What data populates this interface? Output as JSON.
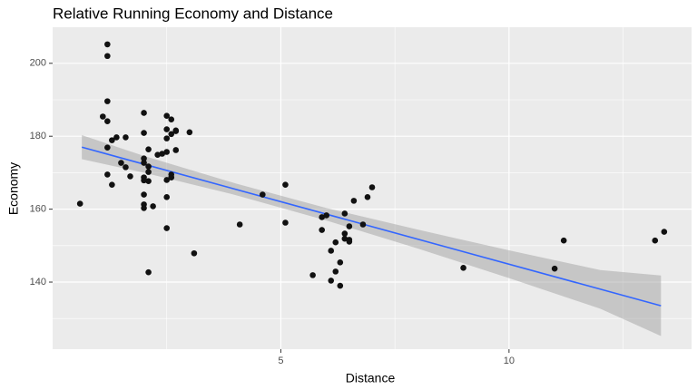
{
  "chart_data": {
    "type": "scatter",
    "title": "Relative Running Economy and Distance",
    "x_label": "Distance",
    "y_label": "Economy",
    "x": [
      0.6,
      1.2,
      1.2,
      1.2,
      1.1,
      1.2,
      1.2,
      1.3,
      1.4,
      1.2,
      1.3,
      1.5,
      1.6,
      1.7,
      1.6,
      2.0,
      2.0,
      2.1,
      2.0,
      2.0,
      2.1,
      2.0,
      2.0,
      2.1,
      2.1,
      2.0,
      2.0,
      2.0,
      2.2,
      2.1,
      2.3,
      2.4,
      2.5,
      2.6,
      2.5,
      2.6,
      2.7,
      2.7,
      2.5,
      2.7,
      2.5,
      2.5,
      2.6,
      2.6,
      2.5,
      2.5,
      3.0,
      3.1,
      4.1,
      4.6,
      5.1,
      5.1,
      5.7,
      5.9,
      6.0,
      5.9,
      6.1,
      6.1,
      6.2,
      6.2,
      6.3,
      6.3,
      6.4,
      6.4,
      6.4,
      6.5,
      6.5,
      6.5,
      6.6,
      6.8,
      6.9,
      7.0,
      9.0,
      11.0,
      11.2,
      13.2,
      13.4
    ],
    "y": [
      161.5,
      205.2,
      202.0,
      189.6,
      185.4,
      184.1,
      176.9,
      178.9,
      179.7,
      169.5,
      166.7,
      172.7,
      171.5,
      169.0,
      179.7,
      186.4,
      180.9,
      176.4,
      173.9,
      172.7,
      171.7,
      168.7,
      167.9,
      167.7,
      170.2,
      164.0,
      161.3,
      160.3,
      160.8,
      142.7,
      174.9,
      175.2,
      185.6,
      184.6,
      181.9,
      180.6,
      181.4,
      181.6,
      175.7,
      176.2,
      179.4,
      168.0,
      168.7,
      169.5,
      163.3,
      154.8,
      181.1,
      147.9,
      155.8,
      164.0,
      166.7,
      156.3,
      141.9,
      157.8,
      158.3,
      154.3,
      140.4,
      148.6,
      150.9,
      142.9,
      145.4,
      139.0,
      153.3,
      151.9,
      158.8,
      151.1,
      155.3,
      151.6,
      162.3,
      155.8,
      163.3,
      166.0,
      143.9,
      143.7,
      151.4,
      151.4,
      153.8
    ],
    "point_color": "#111111",
    "fit": {
      "x": [
        0.64,
        13.33
      ],
      "y": [
        177.0,
        133.5
      ],
      "color": "#3366ff"
    },
    "band": {
      "x": [
        0.64,
        2,
        4,
        6,
        8,
        10,
        12,
        13.33
      ],
      "lower": [
        173.7,
        170.0,
        163.9,
        156.9,
        149.2,
        141.1,
        132.7,
        125.2
      ],
      "upper": [
        180.3,
        174.6,
        167.1,
        160.3,
        154.4,
        148.7,
        143.3,
        141.8
      ],
      "color": "#999999"
    },
    "xlim": [
      0,
      14.0
    ],
    "ylim": [
      121.6,
      209.9
    ],
    "xticks": [
      5,
      10
    ],
    "yticks": [
      140,
      160,
      180,
      200
    ],
    "minor_xticks": [
      2.5,
      7.5,
      12.5
    ],
    "minor_yticks": [
      130,
      150,
      170,
      190
    ],
    "grid": true,
    "panel_color": "#ebebeb"
  }
}
